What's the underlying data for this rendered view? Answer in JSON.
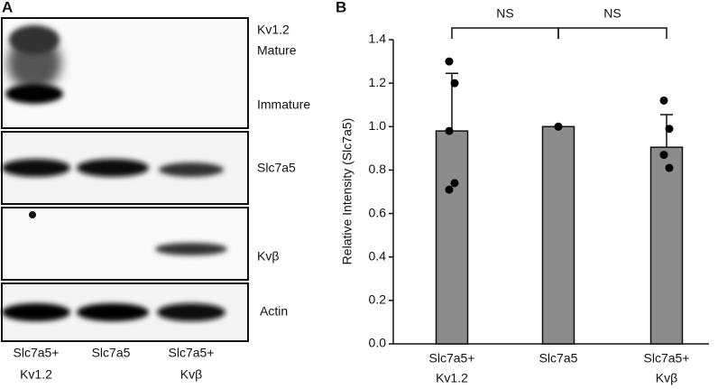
{
  "panel_a": {
    "letter": "A",
    "band_labels": [
      "Kv1.2",
      "Mature",
      "Immature",
      "Slc7a5",
      "Kvβ",
      "Actin"
    ],
    "lanes": [
      [
        "Slc7a5+",
        "Kv1.2"
      ],
      [
        "Slc7a5"
      ],
      [
        "Slc7a5+",
        "Kvβ"
      ]
    ]
  },
  "chart_data": {
    "type": "bar",
    "panel_label": "B",
    "ylabel": "Relative Intensity (Slc7a5)",
    "categories": [
      [
        "Slc7a5+",
        "Kv1.2"
      ],
      [
        "Slc7a5"
      ],
      [
        "Slc7a5+",
        "Kvβ"
      ]
    ],
    "values": [
      0.98,
      1.0,
      0.905
    ],
    "errors": [
      0.265,
      0,
      0.15
    ],
    "points": [
      [
        1.3,
        1.2,
        0.98,
        0.74,
        0.71
      ],
      [
        1.0
      ],
      [
        1.12,
        0.99,
        0.87,
        0.81
      ]
    ],
    "color": "#8c8c8c",
    "ylim": [
      0,
      1.4
    ],
    "yticks": [
      {
        "value": 0,
        "label": "0.0"
      },
      0.2,
      0.4,
      0.6,
      0.8,
      {
        "value": 1,
        "label": "1.0"
      },
      1.2,
      1.4
    ],
    "comparisons": [
      {
        "label": "NS",
        "categories": [
          0,
          1
        ]
      },
      {
        "label": "NS",
        "categories": [
          1,
          2
        ]
      }
    ]
  }
}
